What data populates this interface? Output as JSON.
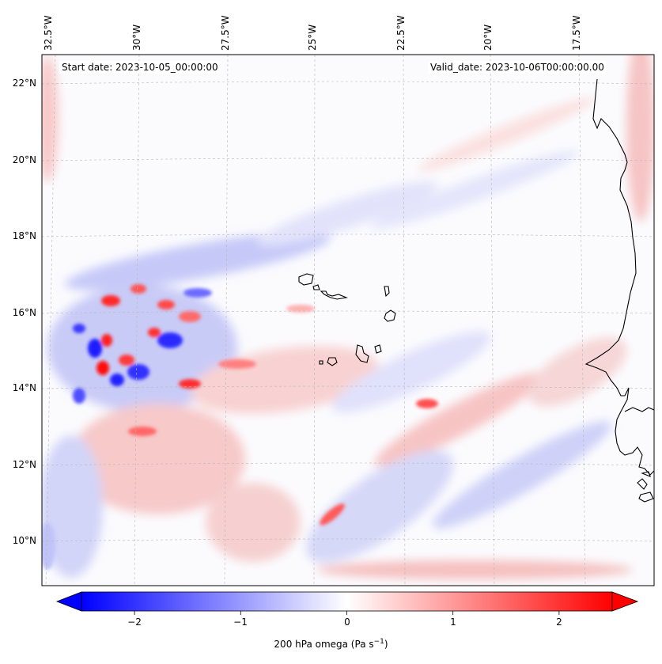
{
  "map": {
    "start_label": "Start date: 2023-10-05_00:00:00",
    "valid_label": "Valid_date: 2023-10-06T00:00:00.00",
    "lon_labels": [
      "32.5°W",
      "30°W",
      "27.5°W",
      "25°W",
      "22.5°W",
      "20°W",
      "17.5°W"
    ],
    "lat_labels": [
      "22°N",
      "20°N",
      "18°N",
      "16°N",
      "14°N",
      "12°N",
      "10°N"
    ],
    "variable": "200 hPa omega",
    "colormap": [
      "#0000ff",
      "#ffffff",
      "#ff0000"
    ],
    "coastline_color": "#000000",
    "gridlines": true
  },
  "colorbar": {
    "tick_labels": [
      "−2",
      "−1",
      "0",
      "1",
      "2"
    ],
    "tick_values": [
      -2,
      -1,
      0,
      1,
      2
    ],
    "range": [
      -2.5,
      2.5
    ],
    "extend": "both",
    "title": "200 hPa omega (Pa s",
    "title_sup": "−1",
    "title_close": ")"
  }
}
